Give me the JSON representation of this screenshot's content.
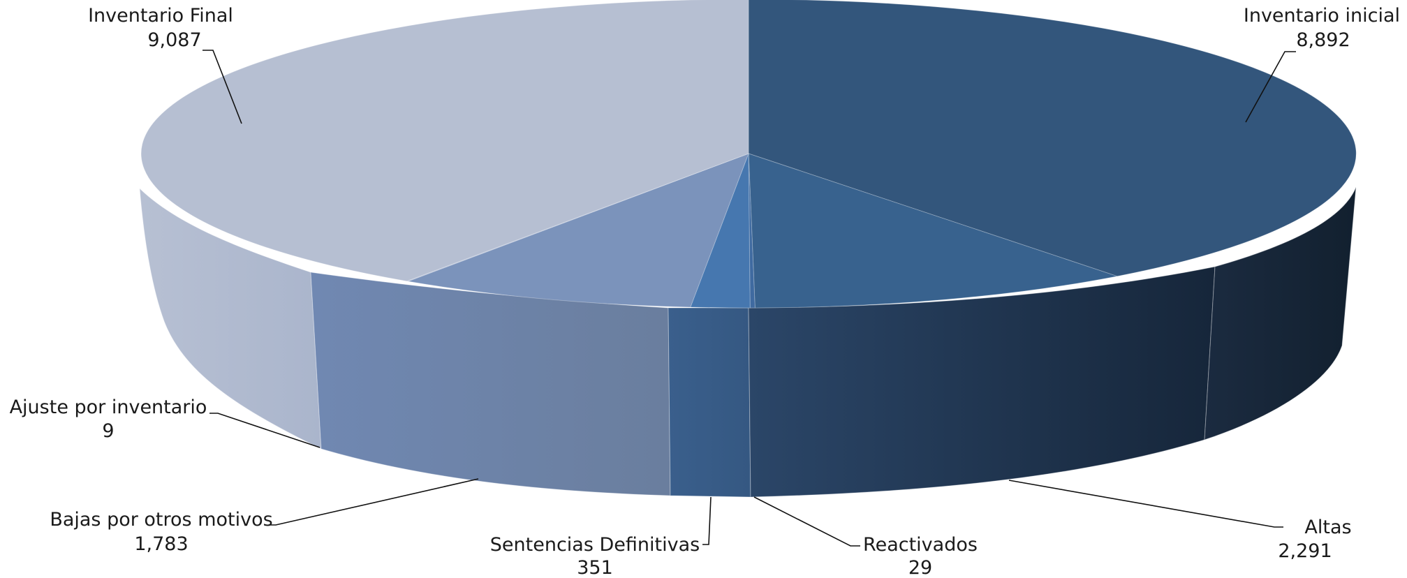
{
  "chart_data": {
    "type": "pie",
    "style": "3d",
    "slices": [
      {
        "label": "Inventario inicial",
        "value": 8892,
        "value_text": "8,892",
        "color": "#33567c"
      },
      {
        "label": "Altas",
        "value": 2291,
        "value_text": "2,291",
        "color": "#38628e"
      },
      {
        "label": "Reactivados",
        "value": 29,
        "value_text": "29",
        "color": "#3f6aa0"
      },
      {
        "label": "Sentencias Definitivas",
        "value": 351,
        "value_text": "351",
        "color": "#4677af"
      },
      {
        "label": "Bajas por otros motivos",
        "value": 1783,
        "value_text": "1,783",
        "color": "#7b93bb"
      },
      {
        "label": "Ajuste por inventario",
        "value": 9,
        "value_text": "9",
        "color": "#a7b4cf"
      },
      {
        "label": "Inventario Final",
        "value": 9087,
        "value_text": "9,087",
        "color": "#b6bfd2"
      }
    ]
  }
}
